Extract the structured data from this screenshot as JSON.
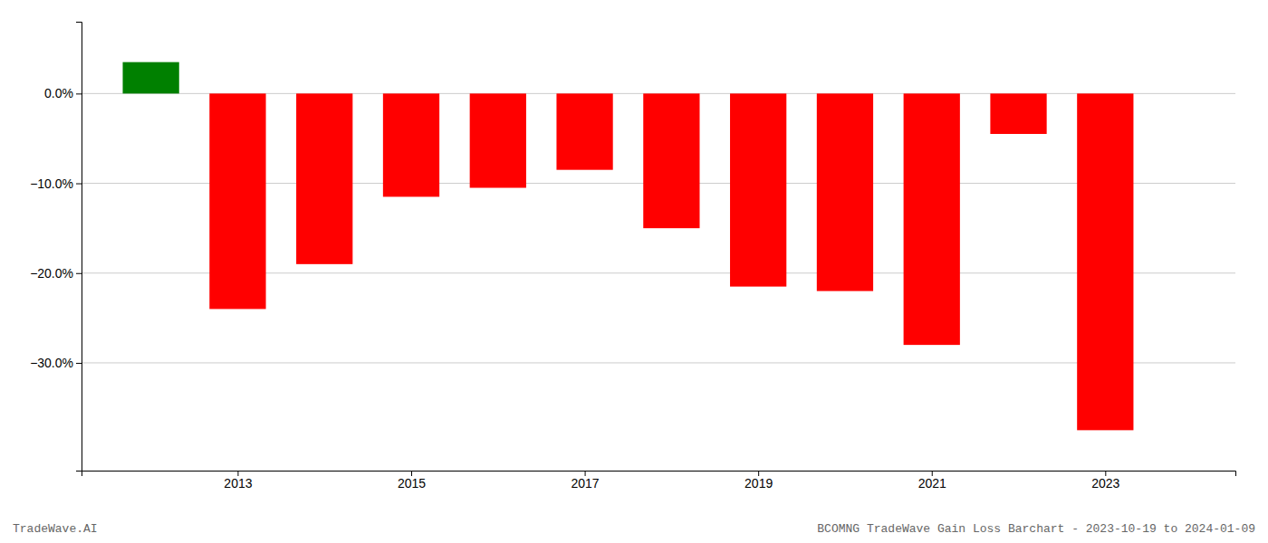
{
  "chart_data": {
    "type": "bar",
    "x": [
      2012,
      2013,
      2014,
      2015,
      2016,
      2017,
      2018,
      2019,
      2020,
      2021,
      2022,
      2023
    ],
    "values": [
      3.5,
      -24.0,
      -19.0,
      -11.5,
      -10.5,
      -8.5,
      -15.0,
      -21.5,
      -22.0,
      -28.0,
      -4.5,
      -37.5
    ],
    "colors": [
      "#008000",
      "#ff0000",
      "#ff0000",
      "#ff0000",
      "#ff0000",
      "#ff0000",
      "#ff0000",
      "#ff0000",
      "#ff0000",
      "#ff0000",
      "#ff0000",
      "#ff0000"
    ],
    "xlim": [
      2011.2,
      2024.5
    ],
    "xticks": [
      2013,
      2015,
      2017,
      2019,
      2021,
      2023
    ],
    "ylim": [
      -42,
      8
    ],
    "yticks": [
      {
        "value": 0.0,
        "label": "0.0%"
      },
      {
        "value": -10.0,
        "label": "−10.0%"
      },
      {
        "value": -20.0,
        "label": "−20.0%"
      },
      {
        "value": -30.0,
        "label": "−30.0%"
      }
    ],
    "grid": true,
    "annotations": [
      "TradeWave.AI",
      "BCOMNG TradeWave Gain Loss Barchart - 2023-10-19 to 2024-01-09"
    ]
  }
}
